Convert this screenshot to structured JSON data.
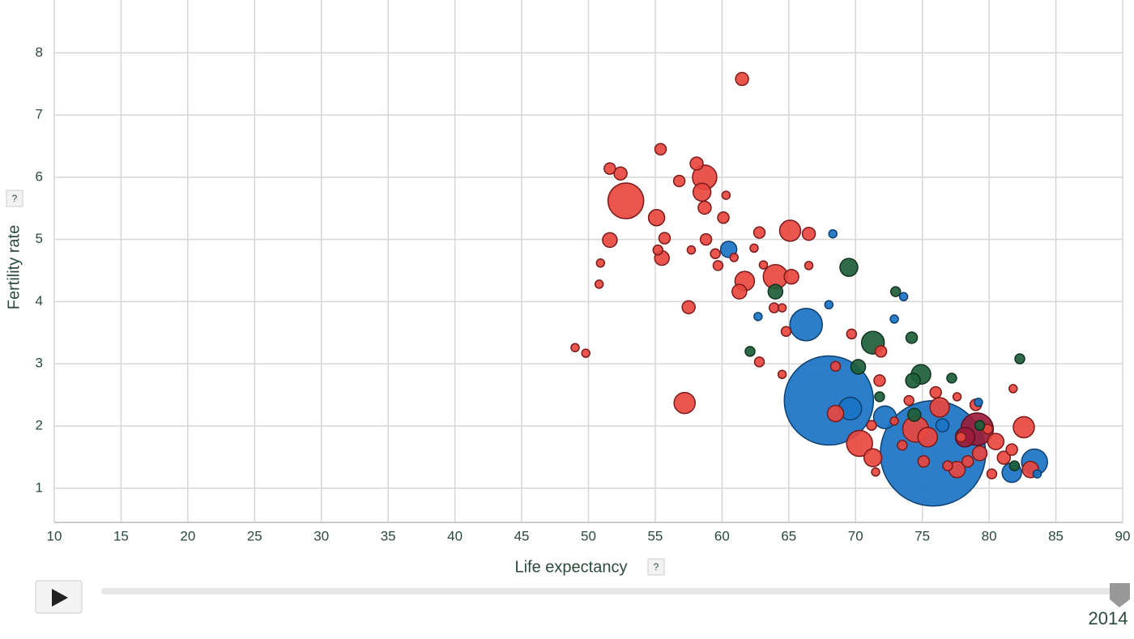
{
  "chart_data": {
    "type": "scatter",
    "x_label": "Life expectancy",
    "y_label": "Fertility rate",
    "help_label": "?",
    "year": "2014",
    "xlim": [
      10,
      90
    ],
    "xticks": [
      10,
      15,
      20,
      25,
      30,
      35,
      40,
      45,
      50,
      55,
      60,
      65,
      70,
      75,
      80,
      85,
      90
    ],
    "ylim": [
      0.45,
      8.85
    ],
    "yticks": [
      1,
      2,
      3,
      4,
      5,
      6,
      7,
      8
    ],
    "grid": true,
    "series": [
      {
        "color": "#1a73c4",
        "stroke": "#0d3f6e",
        "x": [
          75.8,
          68.0,
          66.3,
          60.5,
          68.3,
          73.6,
          62.7,
          68.0,
          72.9,
          83.4,
          81.7,
          79.2,
          72.2,
          69.6,
          83.6,
          76.5
        ],
        "values": [
          1.56,
          2.41,
          3.63,
          4.84,
          5.09,
          4.08,
          3.76,
          3.95,
          3.72,
          1.42,
          1.25,
          2.38,
          2.14,
          2.28,
          1.23,
          2.01
        ],
        "sizes": [
          65,
          55,
          20,
          10,
          5,
          5,
          5,
          5,
          5,
          16,
          12,
          5,
          14,
          14,
          5,
          8
        ]
      },
      {
        "color": "#e8473f",
        "stroke": "#7a1a1a",
        "x": [
          61.5,
          55.4,
          51.6,
          52.4,
          52.8,
          56.8,
          58.1,
          58.7,
          58.5,
          58.7,
          60.3,
          55.1,
          60.1,
          51.6,
          55.7,
          55.2,
          55.5,
          58.8,
          57.7,
          59.5,
          59.7,
          60.9,
          50.9,
          50.8,
          62.8,
          65.1,
          66.5,
          62.4,
          61.7,
          61.3,
          64.0,
          65.2,
          63.1,
          66.5,
          63.9,
          64.5,
          57.5,
          49.0,
          49.8,
          64.8,
          69.7,
          62.8,
          57.2,
          64.5,
          68.5,
          68.5,
          70.3,
          71.3,
          71.8,
          71.9,
          71.5,
          76.3,
          74.5,
          75.4,
          77.6,
          79.0,
          82.6,
          83.1,
          81.8,
          80.5,
          81.1,
          79.3,
          76.0,
          77.6,
          74.0,
          72.9,
          71.2,
          75.1,
          78.4,
          80.2,
          81.7,
          73.5,
          76.9,
          77.9,
          79.9
        ],
        "values": [
          7.58,
          6.45,
          6.14,
          6.06,
          5.62,
          5.94,
          6.22,
          6.0,
          5.76,
          5.51,
          5.71,
          5.35,
          5.35,
          4.99,
          5.02,
          4.83,
          4.7,
          5.0,
          4.83,
          4.77,
          4.58,
          4.71,
          4.62,
          4.28,
          5.11,
          5.14,
          5.09,
          4.86,
          4.33,
          4.16,
          4.4,
          4.4,
          4.59,
          4.58,
          3.9,
          3.9,
          3.91,
          3.26,
          3.17,
          3.52,
          3.48,
          3.03,
          2.37,
          2.83,
          2.96,
          2.2,
          1.72,
          1.49,
          2.73,
          3.2,
          1.26,
          2.3,
          1.95,
          1.82,
          1.3,
          2.34,
          1.98,
          1.3,
          2.6,
          1.75,
          1.49,
          1.56,
          2.54,
          2.47,
          2.41,
          2.08,
          2.01,
          1.43,
          1.43,
          1.23,
          1.62,
          1.69,
          1.36,
          1.82,
          1.95
        ],
        "sizes": [
          8,
          7,
          7,
          8,
          22,
          7,
          8,
          15,
          11,
          8,
          5,
          10,
          7,
          9,
          7,
          6,
          9,
          7,
          5,
          6,
          6,
          5,
          5,
          5,
          7,
          13,
          8,
          5,
          12,
          9,
          15,
          9,
          5,
          5,
          6,
          5,
          8,
          5,
          5,
          6,
          6,
          6,
          13,
          5,
          6,
          10,
          16,
          11,
          7,
          7,
          5,
          12,
          16,
          12,
          10,
          7,
          13,
          10,
          5,
          10,
          8,
          9,
          7,
          5,
          6,
          5,
          6,
          7,
          7,
          6,
          7,
          6,
          6,
          6,
          6
        ]
      },
      {
        "color": "#9b1c3a",
        "stroke": "#5a0f22",
        "x": [
          79.1,
          78.2
        ],
        "values": [
          1.95,
          1.82
        ],
        "sizes": [
          20,
          12
        ]
      },
      {
        "color": "#1e5e3a",
        "stroke": "#0f3320",
        "x": [
          69.5,
          73.0,
          64.0,
          74.2,
          62.1,
          71.3,
          70.2,
          74.9,
          74.3,
          77.2,
          82.3,
          71.8,
          74.4,
          79.3,
          81.9
        ],
        "values": [
          4.55,
          4.16,
          4.16,
          3.42,
          3.2,
          3.34,
          2.95,
          2.83,
          2.73,
          2.77,
          3.08,
          2.47,
          2.18,
          2.01,
          1.36
        ],
        "sizes": [
          11,
          6,
          9,
          7,
          6,
          14,
          9,
          12,
          9,
          6,
          6,
          6,
          8,
          6,
          6
        ]
      }
    ]
  }
}
